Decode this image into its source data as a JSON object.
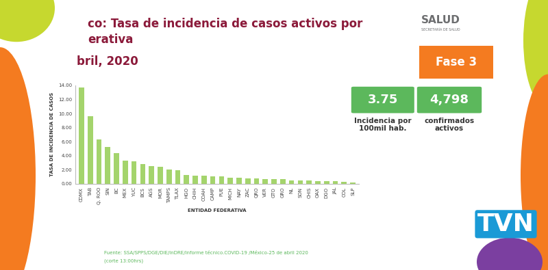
{
  "chart_data": {
    "type": "bar",
    "title": "co: Tasa de incidencia de casos activos por",
    "subtitle": "erativa",
    "date": "bril, 2020",
    "x_label": "ENTIDAD FEDERATIVA",
    "y_label": "TASA DE INCIDENCIA DE CASOS",
    "categories": [
      "CDMX",
      "TAB",
      "Q. ROO",
      "SIN",
      "BC",
      "MEX",
      "YUC",
      "BCS",
      "AGS",
      "MOR",
      "TAMPS",
      "TLAX",
      "HGO",
      "CHIH",
      "COAH",
      "CAMP",
      "PUE",
      "MICH",
      "NAY",
      "ZAC",
      "QRO",
      "VER",
      "GTO",
      "GRO",
      "NL",
      "SON",
      "CHIS",
      "OAX",
      "DGO",
      "JAL",
      "COL",
      "SLP"
    ],
    "values": [
      13.7,
      9.6,
      6.3,
      5.2,
      4.4,
      3.3,
      3.2,
      2.8,
      2.5,
      2.4,
      2.0,
      1.9,
      1.3,
      1.2,
      1.2,
      1.1,
      1.1,
      0.9,
      0.9,
      0.8,
      0.8,
      0.7,
      0.7,
      0.7,
      0.5,
      0.5,
      0.5,
      0.4,
      0.4,
      0.4,
      0.3,
      0.2
    ],
    "color": "#a4d46c",
    "ylim": [
      0,
      14
    ],
    "yticks": [
      {
        "value": 0,
        "label": "0.00"
      },
      {
        "value": 2,
        "label": "2.00"
      },
      {
        "value": 4,
        "label": "4.00"
      },
      {
        "value": 6,
        "label": "6.00"
      },
      {
        "value": 8,
        "label": "8.00"
      },
      {
        "value": 10,
        "label": "10.00"
      },
      {
        "value": 12,
        "label": "12.00"
      },
      {
        "value": 14,
        "label": "14.00"
      }
    ],
    "grid": false
  },
  "header": {
    "logo": "SALUD",
    "logo_subtitle": "SECRETARÍA DE SALUD",
    "phase": "Fase 3"
  },
  "boxes": [
    {
      "value": "3.75",
      "caption": "Incidencia por\n100mil hab."
    },
    {
      "value": "4,798",
      "caption": "confirmados\nactivos"
    }
  ],
  "footer": {
    "source": "Fuente: SSA/SPPS/DGE/DIE/InDRE/Informe técnico.COVID-19 /México-25 de abril 2020",
    "cut": "(corte 13:00hrs)"
  },
  "brand": "TVN"
}
